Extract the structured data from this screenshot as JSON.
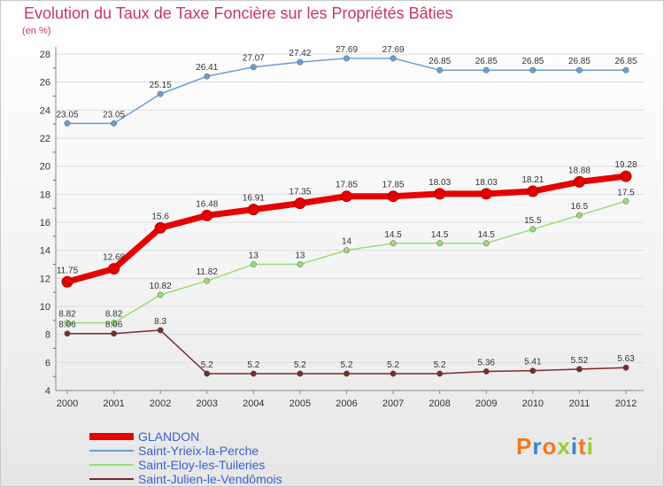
{
  "chart_data": {
    "type": "line",
    "title": "Evolution du Taux de Taxe Foncière sur les Propriétés Bâties",
    "ylabel": "(en %)",
    "xlabel": "",
    "categories": [
      "2000",
      "2001",
      "2002",
      "2003",
      "2004",
      "2005",
      "2006",
      "2007",
      "2008",
      "2009",
      "2010",
      "2011",
      "2012"
    ],
    "ylim": [
      4,
      28
    ],
    "yticks": [
      4,
      6,
      8,
      10,
      12,
      14,
      16,
      18,
      20,
      22,
      24,
      26,
      28
    ],
    "series": [
      {
        "name": "GLANDON",
        "color": "#e60000",
        "highlight": true,
        "values": [
          11.75,
          12.68,
          15.6,
          16.48,
          16.91,
          17.35,
          17.85,
          17.85,
          18.03,
          18.03,
          18.21,
          18.88,
          19.28
        ],
        "labels": [
          "11.75",
          "12.68",
          "15.6",
          "16.48",
          "16.91",
          "17.35",
          "17.85",
          "17.85",
          "18.03",
          "18.03",
          "18.21",
          "18.88",
          "19.28"
        ]
      },
      {
        "name": "Saint-Yrieix-la-Perche",
        "color": "#6a9fd4",
        "highlight": false,
        "values": [
          23.05,
          23.05,
          25.15,
          26.41,
          27.07,
          27.42,
          27.69,
          27.69,
          26.85,
          26.85,
          26.85,
          26.85,
          26.85
        ],
        "labels": [
          "23.05",
          "23.05",
          "25.15",
          "26.41",
          "27.07",
          "27.42",
          "27.69",
          "27.69",
          "26.85",
          "26.85",
          "26.85",
          "26.85",
          "26.85"
        ]
      },
      {
        "name": "Saint-Eloy-les-Tuileries",
        "color": "#99dd77",
        "highlight": false,
        "values": [
          8.82,
          8.82,
          10.82,
          11.82,
          13,
          13,
          14,
          14.5,
          14.5,
          14.5,
          15.5,
          16.5,
          17.5
        ],
        "labels": [
          "8.82",
          "8.82",
          "10.82",
          "11.82",
          "13",
          "13",
          "14",
          "14.5",
          "14.5",
          "14.5",
          "15.5",
          "16.5",
          "17.5"
        ]
      },
      {
        "name": "Saint-Julien-le-Vendômois",
        "color": "#7a2a2a",
        "highlight": false,
        "values": [
          8.06,
          8.06,
          8.3,
          5.2,
          5.2,
          5.2,
          5.2,
          5.2,
          5.2,
          5.36,
          5.41,
          5.52,
          5.63
        ],
        "labels": [
          "8.06",
          "8.06",
          "8.3",
          "5.2",
          "5.2",
          "5.2",
          "5.2",
          "5.2",
          "5.2",
          "5.36",
          "5.41",
          "5.52",
          "5.63"
        ]
      }
    ],
    "legend_position": "bottom-left"
  },
  "brand": {
    "text": "Proxiti",
    "colors": [
      "#f07a1e",
      "#3a86c8",
      "#f07a1e",
      "#9acd32",
      "#3a86c8",
      "#f07a1e",
      "#9acd32"
    ]
  }
}
